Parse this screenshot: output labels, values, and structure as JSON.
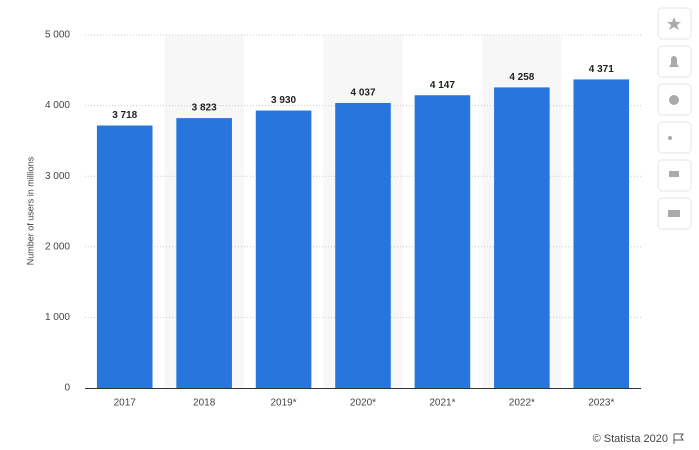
{
  "chart_data": {
    "type": "bar",
    "y_label": "Number of users in millions",
    "categories": [
      "2017",
      "2018",
      "2019*",
      "2020*",
      "2021*",
      "2022*",
      "2023*"
    ],
    "values": [
      3718,
      3823,
      3930,
      4037,
      4147,
      4258,
      4371
    ],
    "value_labels": [
      "3 718",
      "3 823",
      "3 930",
      "4 037",
      "4 147",
      "4 258",
      "4 371"
    ],
    "color": "#2876dd",
    "ylim": [
      0,
      5000
    ],
    "yticks": [
      0,
      {
        "value": 1000,
        "label": "1 000"
      },
      {
        "value": 2000,
        "label": "2 000"
      },
      {
        "value": 3000,
        "label": "3 000"
      },
      {
        "value": 4000,
        "label": "4 000"
      },
      {
        "value": 5000,
        "label": "5 000"
      }
    ],
    "grid": true,
    "source": "© Statista 2020"
  }
}
